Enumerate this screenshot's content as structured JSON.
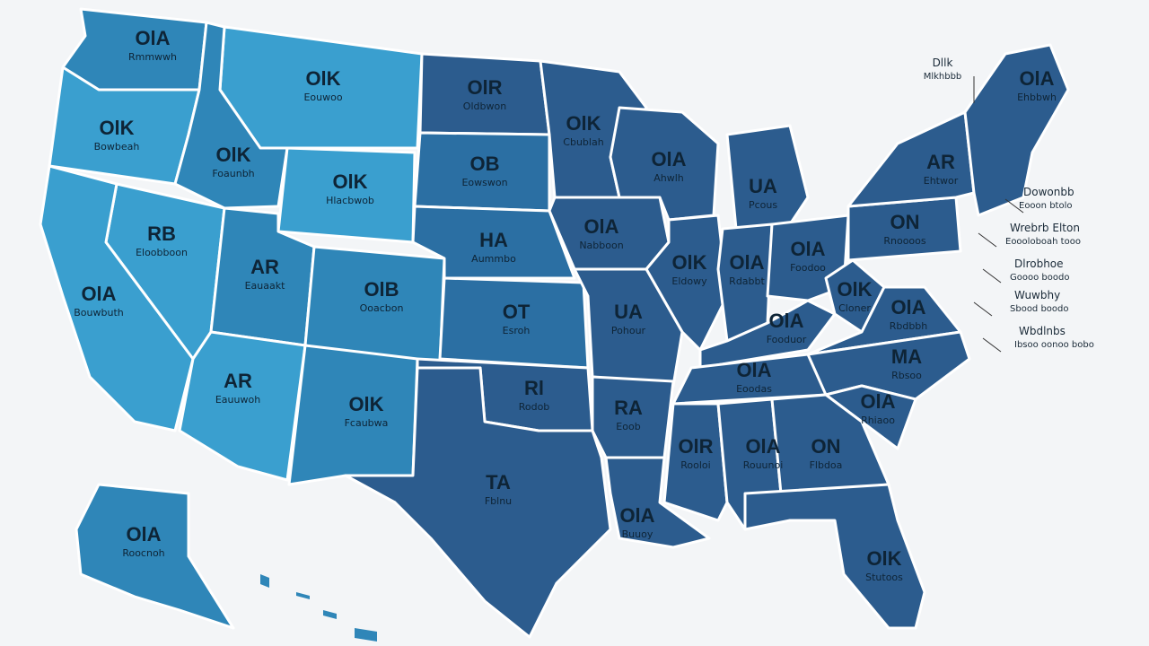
{
  "header": {
    "title": "Dllk",
    "subtitle": "Mlkhbbb"
  },
  "states": [
    {
      "label": "OlA",
      "sublabel": "Rmmwwh"
    },
    {
      "label": "OlK",
      "sublabel": "Eouwoo"
    },
    {
      "label": "OlR",
      "sublabel": "Oldbwon"
    },
    {
      "label": "OlK",
      "sublabel": "Cbublah"
    },
    {
      "label": "OlK",
      "sublabel": "Bowbeah"
    },
    {
      "label": "OlK",
      "sublabel": "Foaunbh"
    },
    {
      "label": "OlK",
      "sublabel": "Hlacbwob"
    },
    {
      "label": "OB",
      "sublabel": "Eowswon"
    },
    {
      "label": "OlA",
      "sublabel": "Ahwlh"
    },
    {
      "label": "UA",
      "sublabel": "Pcous"
    },
    {
      "label": "RB",
      "sublabel": "Eloobboon"
    },
    {
      "label": "AR",
      "sublabel": "Eauaakt"
    },
    {
      "label": "OlB",
      "sublabel": "Ooacbon"
    },
    {
      "label": "HA",
      "sublabel": "Aummbo"
    },
    {
      "label": "OlA",
      "sublabel": "Nabboon"
    },
    {
      "label": "OlK",
      "sublabel": "Eldowy"
    },
    {
      "label": "OlA",
      "sublabel": "Rdabbt"
    },
    {
      "label": "OlA",
      "sublabel": "Foodoo"
    },
    {
      "label": "ON",
      "sublabel": "Rnoooos"
    },
    {
      "label": "AR",
      "sublabel": "Ehtwor"
    },
    {
      "label": "OlA",
      "sublabel": "Ehbbwh"
    },
    {
      "label": "OlA",
      "sublabel": "Bouwbuth"
    },
    {
      "label": "OT",
      "sublabel": "Esroh"
    },
    {
      "label": "UA",
      "sublabel": "Pohour"
    },
    {
      "label": "OlA",
      "sublabel": "Fooduor"
    },
    {
      "label": "OlK",
      "sublabel": "Cloner"
    },
    {
      "label": "OlA",
      "sublabel": "Rbdbbh"
    },
    {
      "label": "AR",
      "sublabel": "Eauuwoh"
    },
    {
      "label": "OlK",
      "sublabel": "Fcaubwa"
    },
    {
      "label": "Rl",
      "sublabel": "Rodob"
    },
    {
      "label": "RA",
      "sublabel": "Eoob"
    },
    {
      "label": "OlA",
      "sublabel": "Eoodas"
    },
    {
      "label": "MA",
      "sublabel": "Rbsoo"
    },
    {
      "label": "OlA",
      "sublabel": "Rhiaoo"
    },
    {
      "label": "OlR",
      "sublabel": "Rooloi"
    },
    {
      "label": "OlA",
      "sublabel": "Rouunoi"
    },
    {
      "label": "ON",
      "sublabel": "Flbdoa"
    },
    {
      "label": "TA",
      "sublabel": "Fblnu"
    },
    {
      "label": "OlA",
      "sublabel": "Buuoy"
    },
    {
      "label": "OlK",
      "sublabel": "Stutoos"
    },
    {
      "label": "OlA",
      "sublabel": "Roocnoh"
    }
  ],
  "callouts": [
    {
      "title": "Dowonbb",
      "text": "Eooon btolo"
    },
    {
      "title": "Wrebrb Elton",
      "text": "Eoooloboah tooo"
    },
    {
      "title": "Dlrobhoe",
      "text": "Goooo boodo"
    },
    {
      "title": "Wuwbhy",
      "text": "Sbood boodo"
    },
    {
      "title": "Wbdlnbs",
      "text": "Ibsoo oonoo bobo"
    }
  ]
}
